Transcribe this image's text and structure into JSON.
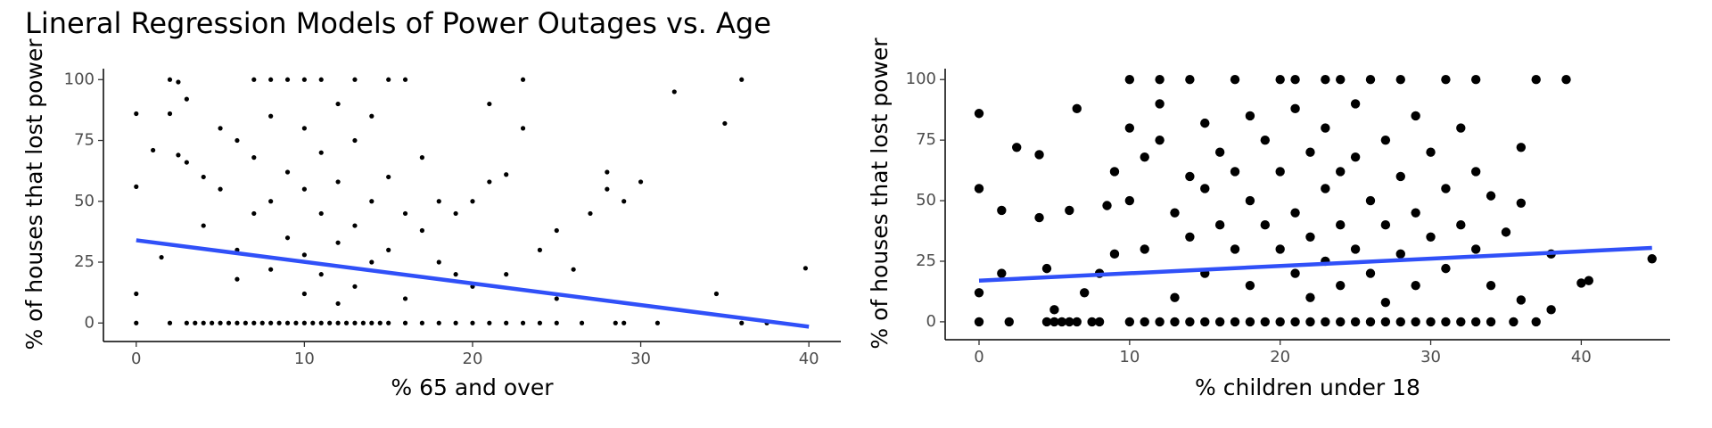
{
  "chart_data": [
    {
      "type": "scatter",
      "title": "Lineral Regression Models of Power Outages vs. Age",
      "x_label": "% 65 and over",
      "y_label": "% of houses that lost power",
      "color": "#000000",
      "x": [
        0,
        2,
        3,
        3.5,
        4,
        4.5,
        5,
        5.5,
        6,
        6.5,
        7,
        7.5,
        8,
        8.5,
        9,
        9.5,
        10,
        10.5,
        11,
        11.5,
        12,
        12.5,
        13,
        13.5,
        14,
        14.5,
        15,
        16,
        17,
        18,
        19,
        20,
        21,
        22,
        23,
        24,
        25,
        26.5,
        28.5,
        29,
        31,
        36,
        37.5,
        0,
        0,
        0,
        1,
        1.5,
        2,
        2.5,
        2,
        2.5,
        3,
        3,
        4,
        4,
        5,
        5,
        6,
        6,
        6,
        7,
        7,
        7,
        8,
        8,
        8,
        8,
        9,
        9,
        9,
        10,
        10,
        10,
        10,
        10,
        11,
        11,
        11,
        11,
        12,
        12,
        12,
        12,
        13,
        13,
        13,
        13,
        14,
        14,
        14,
        15,
        15,
        15,
        16,
        16,
        16,
        17,
        17,
        18,
        18,
        19,
        19,
        20,
        20,
        21,
        21,
        22,
        22,
        23,
        23,
        24,
        25,
        25,
        26,
        27,
        28,
        28,
        29,
        30,
        32,
        34.5,
        35,
        36,
        39.8
      ],
      "values": [
        0,
        0,
        0,
        0,
        0,
        0,
        0,
        0,
        0,
        0,
        0,
        0,
        0,
        0,
        0,
        0,
        0,
        0,
        0,
        0,
        0,
        0,
        0,
        0,
        0,
        0,
        0,
        0,
        0,
        0,
        0,
        0,
        0,
        0,
        0,
        0,
        0,
        0,
        0,
        0,
        0,
        0,
        0,
        86,
        56,
        12,
        71,
        27,
        100,
        99,
        86,
        69,
        66,
        92,
        60,
        40,
        80,
        55,
        75,
        30,
        18,
        100,
        68,
        45,
        100,
        85,
        50,
        22,
        100,
        62,
        35,
        100,
        80,
        55,
        28,
        12,
        100,
        70,
        45,
        20,
        90,
        58,
        33,
        8,
        100,
        75,
        40,
        15,
        85,
        50,
        25,
        100,
        60,
        30,
        100,
        45,
        10,
        68,
        38,
        25,
        50,
        45,
        20,
        50,
        15,
        90,
        58,
        61,
        20,
        100,
        80,
        30,
        38,
        10,
        22,
        45,
        62,
        55,
        50,
        58,
        95,
        12,
        82,
        100,
        22.5
      ],
      "fit": {
        "x": [
          0,
          40
        ],
        "values": [
          34,
          -1.5
        ],
        "color": "#3050f8"
      },
      "xlim": [
        -1.95,
        41.9
      ],
      "ylim": [
        -7.6,
        104.5
      ],
      "xticks": [
        0,
        10,
        20,
        30,
        40
      ],
      "yticks": [
        0,
        25,
        50,
        75,
        100
      ]
    },
    {
      "type": "scatter",
      "x_label": "% children under 18",
      "y_label": "% of houses that lost power",
      "color": "#000000",
      "x": [
        0,
        2,
        4.5,
        5,
        5.5,
        6,
        6.5,
        7.5,
        8,
        10,
        11,
        12,
        13,
        14,
        15,
        16,
        17,
        18,
        19,
        20,
        21,
        22,
        23,
        24,
        25,
        26,
        27,
        28,
        29,
        30,
        31,
        32,
        33,
        34,
        35.5,
        37,
        0,
        0,
        0,
        1.5,
        1.5,
        2.5,
        4,
        4,
        4.5,
        5,
        6,
        6.5,
        7,
        8,
        8.5,
        9,
        9,
        10,
        10,
        10,
        11,
        11,
        12,
        12,
        12,
        13,
        13,
        14,
        14,
        14,
        15,
        15,
        15,
        16,
        16,
        17,
        17,
        17,
        18,
        18,
        18,
        19,
        19,
        20,
        20,
        20,
        21,
        21,
        21,
        21,
        22,
        22,
        22,
        23,
        23,
        23,
        23,
        24,
        24,
        24,
        24,
        25,
        25,
        25,
        26,
        26,
        26,
        27,
        27,
        27,
        28,
        28,
        28,
        29,
        29,
        29,
        30,
        30,
        31,
        31,
        31,
        32,
        32,
        33,
        33,
        33,
        34,
        34,
        35,
        36,
        36,
        36,
        37,
        38,
        38,
        39,
        40,
        40.5,
        44.7
      ],
      "values": [
        0,
        0,
        0,
        0,
        0,
        0,
        0,
        0,
        0,
        0,
        0,
        0,
        0,
        0,
        0,
        0,
        0,
        0,
        0,
        0,
        0,
        0,
        0,
        0,
        0,
        0,
        0,
        0,
        0,
        0,
        0,
        0,
        0,
        0,
        0,
        0,
        86,
        55,
        12,
        46,
        20,
        72,
        69,
        43,
        22,
        5,
        46,
        88,
        12,
        20,
        48,
        62,
        28,
        100,
        80,
        50,
        68,
        30,
        100,
        75,
        90,
        45,
        10,
        100,
        60,
        35,
        82,
        55,
        20,
        70,
        40,
        100,
        62,
        30,
        85,
        50,
        15,
        75,
        40,
        100,
        62,
        30,
        100,
        88,
        45,
        20,
        70,
        35,
        10,
        100,
        80,
        55,
        25,
        100,
        62,
        40,
        15,
        90,
        68,
        30,
        100,
        50,
        20,
        75,
        40,
        8,
        100,
        60,
        28,
        85,
        45,
        15,
        70,
        35,
        100,
        55,
        22,
        80,
        40,
        100,
        62,
        30,
        52,
        15,
        37,
        72,
        49,
        9,
        100,
        28,
        5,
        100,
        16,
        17,
        26
      ],
      "fit": {
        "x": [
          0,
          44.7
        ],
        "values": [
          17,
          30.5
        ],
        "color": "#3050f8"
      },
      "xlim": [
        -2.25,
        45.9
      ],
      "ylim": [
        -7.4,
        104.5
      ],
      "xticks": [
        0,
        10,
        20,
        30,
        40
      ],
      "yticks": [
        0,
        25,
        50,
        75,
        100
      ]
    }
  ]
}
